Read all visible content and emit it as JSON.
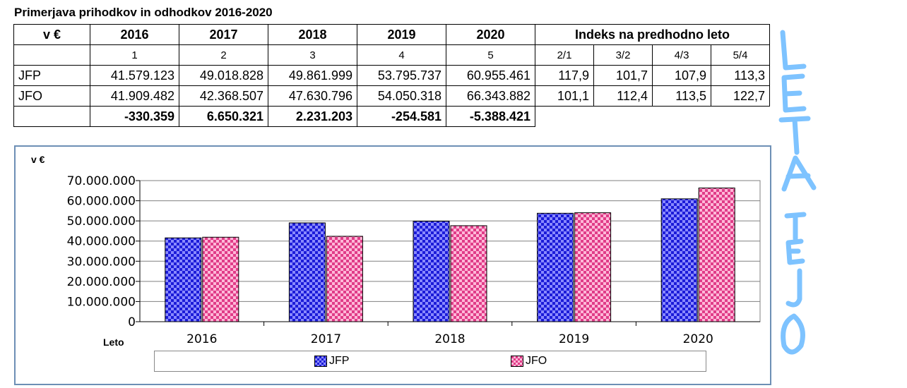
{
  "title": "Primerjava prihodkov in odhodkov 2016-2020",
  "table": {
    "corner": "v €",
    "years": [
      "2016",
      "2017",
      "2018",
      "2019",
      "2020"
    ],
    "index_header": "Indeks na predhodno leto",
    "col_numbers": [
      "1",
      "2",
      "3",
      "4",
      "5"
    ],
    "index_cols": [
      "2/1",
      "3/2",
      "4/3",
      "5/4"
    ],
    "rows": [
      {
        "label": "JFP",
        "values": [
          "41.579.123",
          "49.018.828",
          "49.861.999",
          "53.795.737",
          "60.955.461"
        ],
        "indexes": [
          "117,9",
          "101,7",
          "107,9",
          "113,3"
        ]
      },
      {
        "label": "JFO",
        "values": [
          "41.909.482",
          "42.368.507",
          "47.630.796",
          "54.050.318",
          "66.343.882"
        ],
        "indexes": [
          "101,1",
          "112,4",
          "113,5",
          "122,7"
        ]
      }
    ],
    "differences": [
      "-330.359",
      "6.650.321",
      "2.231.203",
      "-254.581",
      "-5.388.421"
    ]
  },
  "chart_data": {
    "type": "bar",
    "title": "",
    "ylabel": "v €",
    "xlabel": "Leto",
    "categories": [
      "2016",
      "2017",
      "2018",
      "2019",
      "2020"
    ],
    "series": [
      {
        "name": "JFP",
        "values": [
          41579123,
          49018828,
          49861999,
          53795737,
          60955461
        ]
      },
      {
        "name": "JFO",
        "values": [
          41909482,
          42368507,
          47630796,
          54050318,
          66343882
        ]
      }
    ],
    "ylim": [
      0,
      70000000
    ],
    "yticks": [
      "0",
      "10.000.000",
      "20.000.000",
      "30.000.000",
      "40.000.000",
      "50.000.000",
      "60.000.000",
      "70.000.000"
    ],
    "grid": true,
    "legend": "bottom"
  },
  "colors": {
    "jfp": "#1c1cd8",
    "jfp_light": "#8a8aff",
    "jfo": "#e03c88",
    "jfo_light": "#ffb8d8",
    "frame": "#6d8fb5",
    "handwriting": "#7ec3ff"
  },
  "handwriting": {
    "text": "LETA TEJO"
  }
}
